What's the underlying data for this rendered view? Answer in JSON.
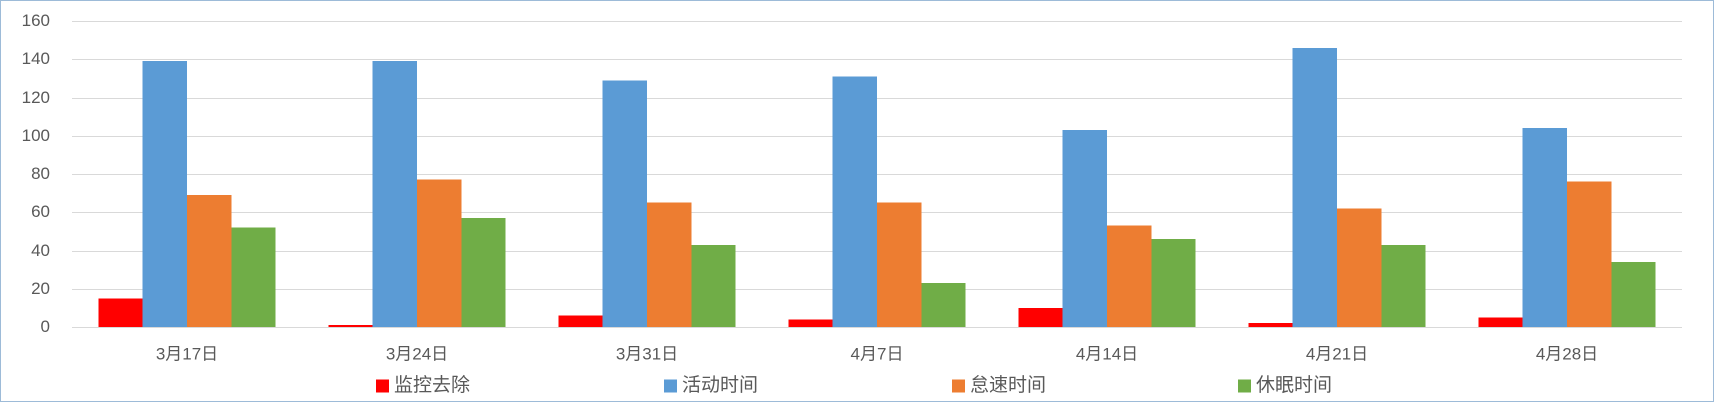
{
  "chart_data": {
    "type": "bar",
    "categories": [
      "3月17日",
      "3月24日",
      "3月31日",
      "4月7日",
      "4月14日",
      "4月21日",
      "4月28日"
    ],
    "series": [
      {
        "name": "监控去除",
        "color": "#FF0000",
        "values": [
          15,
          1,
          6,
          4,
          10,
          2,
          5
        ]
      },
      {
        "name": "活动时间",
        "color": "#5B9BD5",
        "values": [
          139,
          139,
          129,
          131,
          103,
          146,
          104
        ]
      },
      {
        "name": "怠速时间",
        "color": "#ED7D31",
        "values": [
          69,
          77,
          65,
          65,
          53,
          62,
          76
        ]
      },
      {
        "name": "休眠时间",
        "color": "#70AD47",
        "values": [
          52,
          57,
          43,
          23,
          46,
          43,
          34
        ]
      }
    ],
    "ylim": [
      0,
      160
    ],
    "yticks": [
      0,
      20,
      40,
      60,
      80,
      100,
      120,
      140,
      160
    ],
    "grid": true,
    "legend": "bottom"
  }
}
